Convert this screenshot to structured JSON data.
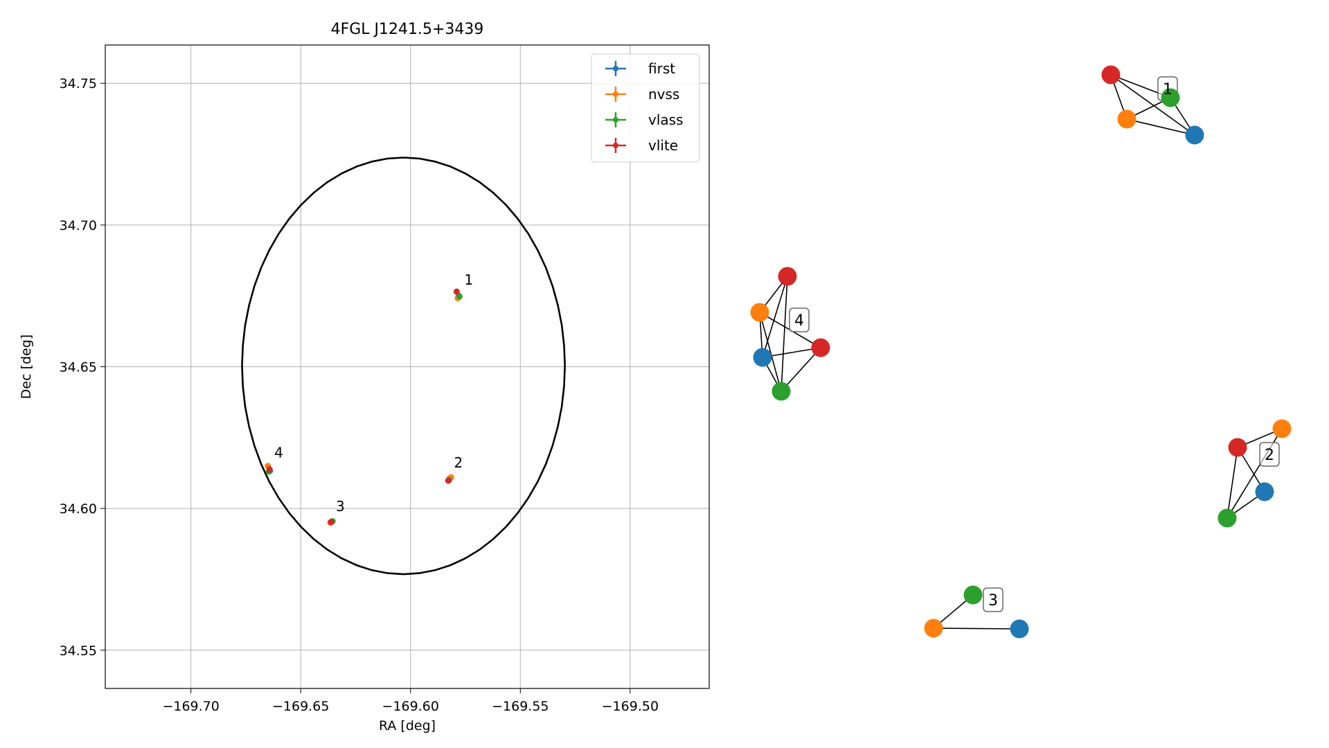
{
  "chart_data": [
    {
      "type": "scatter",
      "title": "4FGL J1241.5+3439",
      "xlabel": "RA [deg]",
      "ylabel": "Dec [deg]",
      "xlim": [
        -169.739,
        -169.464
      ],
      "ylim": [
        34.5365,
        34.7635
      ],
      "xticks": [
        -169.7,
        -169.65,
        -169.6,
        -169.55,
        -169.5
      ],
      "xtick_labels": [
        "−169.70",
        "−169.65",
        "−169.60",
        "−169.55",
        "−169.50"
      ],
      "yticks": [
        34.55,
        34.6,
        34.65,
        34.7,
        34.75
      ],
      "ytick_labels": [
        "34.55",
        "34.60",
        "34.65",
        "34.70",
        "34.75"
      ],
      "grid": true,
      "legend_position": "top-right",
      "circle": {
        "center_ra": -169.6032,
        "center_dec": 34.6503,
        "radius_deg": 0.0735,
        "color": "#000000"
      },
      "series": [
        {
          "name": "first",
          "color": "#1f77b4",
          "points": [
            {
              "ra": -169.578,
              "dec": 34.675
            },
            {
              "ra": -169.5822,
              "dec": 34.6105
            },
            {
              "ra": -169.636,
              "dec": 34.5953
            },
            {
              "ra": -169.664,
              "dec": 34.6133
            }
          ]
        },
        {
          "name": "nvss",
          "color": "#ff7f0e",
          "points": [
            {
              "ra": -169.5785,
              "dec": 34.6742
            },
            {
              "ra": -169.5815,
              "dec": 34.611
            },
            {
              "ra": -169.6365,
              "dec": 34.595
            },
            {
              "ra": -169.665,
              "dec": 34.615
            }
          ]
        },
        {
          "name": "vlass",
          "color": "#2ca02c",
          "points": [
            {
              "ra": -169.5777,
              "dec": 34.6748
            },
            {
              "ra": -169.5825,
              "dec": 34.61
            },
            {
              "ra": -169.6355,
              "dec": 34.5955
            },
            {
              "ra": -169.6645,
              "dec": 34.613
            }
          ]
        },
        {
          "name": "vlite",
          "color": "#d62728",
          "points": [
            {
              "ra": -169.579,
              "dec": 34.6765
            },
            {
              "ra": -169.5828,
              "dec": 34.6098
            },
            {
              "ra": -169.6362,
              "dec": 34.5952
            },
            {
              "ra": -169.6642,
              "dec": 34.6138
            }
          ]
        }
      ],
      "labels": [
        {
          "text": "1",
          "ra": -169.5755,
          "dec": 34.679
        },
        {
          "text": "2",
          "ra": -169.5802,
          "dec": 34.6145
        },
        {
          "text": "3",
          "ra": -169.634,
          "dec": 34.599
        },
        {
          "text": "4",
          "ra": -169.662,
          "dec": 34.618
        }
      ]
    },
    {
      "type": "network",
      "colors": {
        "first": "#1f77b4",
        "nvss": "#ff7f0e",
        "vlass": "#2ca02c",
        "vlite": "#d62728"
      },
      "groups": [
        {
          "label": "1",
          "nodes": [
            {
              "id": "vlite",
              "source": "vlite"
            },
            {
              "id": "vlass",
              "source": "vlass"
            },
            {
              "id": "nvss",
              "source": "nvss"
            },
            {
              "id": "first",
              "source": "first"
            }
          ],
          "edges": [
            [
              "vlite",
              "vlass"
            ],
            [
              "vlite",
              "nvss"
            ],
            [
              "vlite",
              "first"
            ],
            [
              "nvss",
              "vlass"
            ],
            [
              "nvss",
              "first"
            ],
            [
              "vlass",
              "first"
            ]
          ]
        },
        {
          "label": "4",
          "nodes": [
            {
              "id": "vlite_a",
              "source": "vlite"
            },
            {
              "id": "nvss",
              "source": "nvss"
            },
            {
              "id": "first",
              "source": "first"
            },
            {
              "id": "vlite_b",
              "source": "vlite"
            },
            {
              "id": "vlass",
              "source": "vlass"
            }
          ],
          "edges": [
            [
              "vlite_a",
              "nvss"
            ],
            [
              "vlite_a",
              "first"
            ],
            [
              "vlite_a",
              "vlass"
            ],
            [
              "nvss",
              "vlite_b"
            ],
            [
              "nvss",
              "first"
            ],
            [
              "nvss",
              "vlass"
            ],
            [
              "first",
              "vlite_b"
            ],
            [
              "first",
              "vlass"
            ],
            [
              "vlite_b",
              "vlass"
            ]
          ]
        },
        {
          "label": "2",
          "nodes": [
            {
              "id": "vlite",
              "source": "vlite"
            },
            {
              "id": "nvss",
              "source": "nvss"
            },
            {
              "id": "first",
              "source": "first"
            },
            {
              "id": "vlass",
              "source": "vlass"
            }
          ],
          "edges": [
            [
              "vlite",
              "nvss"
            ],
            [
              "vlite",
              "first"
            ],
            [
              "vlite",
              "vlass"
            ],
            [
              "nvss",
              "vlass"
            ],
            [
              "first",
              "vlass"
            ]
          ]
        },
        {
          "label": "3",
          "nodes": [
            {
              "id": "vlass",
              "source": "vlass"
            },
            {
              "id": "nvss",
              "source": "nvss"
            },
            {
              "id": "first",
              "source": "first"
            }
          ],
          "edges": [
            [
              "vlass",
              "nvss"
            ],
            [
              "nvss",
              "first"
            ]
          ]
        }
      ]
    }
  ]
}
